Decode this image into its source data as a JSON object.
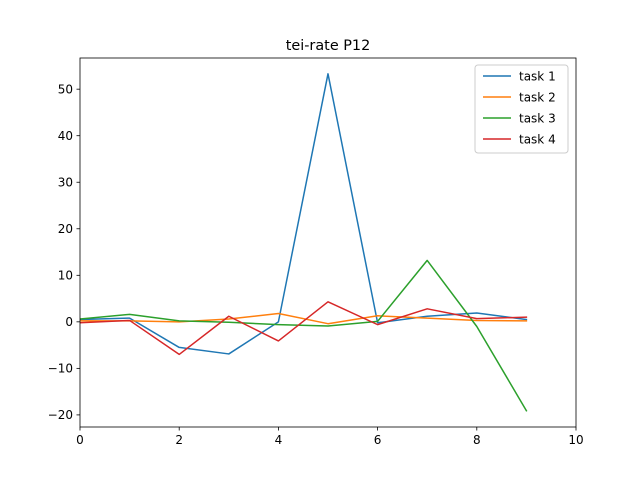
{
  "chart_data": {
    "type": "line",
    "title": "tei-rate P12",
    "xlabel": "",
    "ylabel": "",
    "xlim": [
      0,
      10
    ],
    "ylim": [
      -22.6,
      56.7
    ],
    "xticks": [
      0,
      2,
      4,
      6,
      8,
      10
    ],
    "yticks": [
      -20,
      -10,
      0,
      10,
      20,
      30,
      40,
      50
    ],
    "ytick_labels": [
      "−20",
      "−10",
      "0",
      "10",
      "20",
      "30",
      "40",
      "50"
    ],
    "grid": false,
    "legend_position": "top-right",
    "x": [
      0,
      1,
      2,
      3,
      4,
      5,
      6,
      7,
      8,
      9
    ],
    "series": [
      {
        "name": "task 1",
        "color": "#1f77b4",
        "values": [
          0.5,
          0.8,
          -5.5,
          -6.9,
          0.0,
          53.3,
          -0.2,
          1.2,
          1.9,
          0.5
        ]
      },
      {
        "name": "task 2",
        "color": "#ff7f0e",
        "values": [
          0.2,
          0.2,
          0.0,
          0.6,
          1.8,
          -0.4,
          1.3,
          0.8,
          0.3,
          0.2
        ]
      },
      {
        "name": "task 3",
        "color": "#2ca02c",
        "values": [
          0.6,
          1.6,
          0.2,
          -0.1,
          -0.6,
          -0.9,
          0.1,
          13.2,
          -1.0,
          -19.1
        ]
      },
      {
        "name": "task 4",
        "color": "#d62728",
        "values": [
          -0.2,
          0.3,
          -7.0,
          1.2,
          -4.1,
          4.3,
          -0.6,
          2.8,
          0.7,
          1.0
        ]
      }
    ]
  }
}
